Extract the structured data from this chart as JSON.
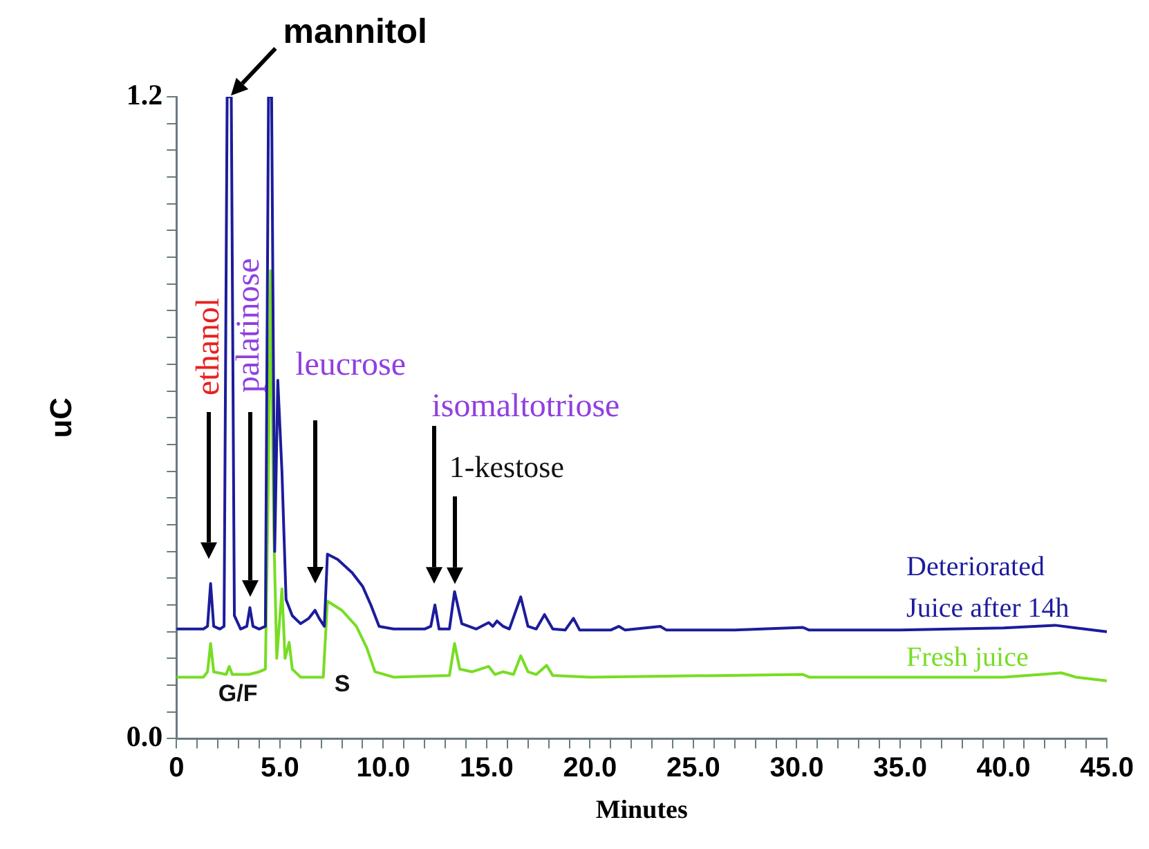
{
  "chart_data": {
    "type": "line",
    "xlabel": "Minutes",
    "ylabel": "uC",
    "xlim": [
      0,
      45
    ],
    "ylim": [
      0,
      1.2
    ],
    "xticks": [
      0,
      {
        "value": 1,
        "label": null
      },
      {
        "value": 2,
        "label": null
      },
      {
        "value": 3,
        "label": null
      },
      {
        "value": 4,
        "label": null
      },
      {
        "value": 5,
        "label": "5.0"
      },
      {
        "value": 6,
        "label": null
      },
      {
        "value": 7,
        "label": null
      },
      {
        "value": 8,
        "label": null
      },
      {
        "value": 9,
        "label": null
      },
      {
        "value": 10,
        "label": "10.0"
      },
      {
        "value": 11,
        "label": null
      },
      {
        "value": 12,
        "label": null
      },
      {
        "value": 13,
        "label": null
      },
      {
        "value": 14,
        "label": null
      },
      {
        "value": 15,
        "label": "15.0"
      },
      {
        "value": 16,
        "label": null
      },
      {
        "value": 17,
        "label": null
      },
      {
        "value": 18,
        "label": null
      },
      {
        "value": 19,
        "label": null
      },
      {
        "value": 20,
        "label": "20.0"
      },
      {
        "value": 21,
        "label": null
      },
      {
        "value": 22,
        "label": null
      },
      {
        "value": 23,
        "label": null
      },
      {
        "value": 24,
        "label": null
      },
      {
        "value": 25,
        "label": "25.0"
      },
      {
        "value": 26,
        "label": null
      },
      {
        "value": 27,
        "label": null
      },
      {
        "value": 28,
        "label": null
      },
      {
        "value": 29,
        "label": null
      },
      {
        "value": 30,
        "label": "30.0"
      },
      {
        "value": 31,
        "label": null
      },
      {
        "value": 32,
        "label": null
      },
      {
        "value": 33,
        "label": null
      },
      {
        "value": 34,
        "label": null
      },
      {
        "value": 35,
        "label": "35.0"
      },
      {
        "value": 36,
        "label": null
      },
      {
        "value": 37,
        "label": null
      },
      {
        "value": 38,
        "label": null
      },
      {
        "value": 39,
        "label": null
      },
      {
        "value": 40,
        "label": "40.0"
      },
      {
        "value": 41,
        "label": null
      },
      {
        "value": 42,
        "label": null
      },
      {
        "value": 43,
        "label": null
      },
      {
        "value": 44,
        "label": null
      },
      {
        "value": 45,
        "label": "45.0"
      }
    ],
    "yticks": [
      {
        "value": 0,
        "label": "0.0"
      },
      {
        "value": 0.05,
        "label": null
      },
      {
        "value": 0.1,
        "label": null
      },
      {
        "value": 0.15,
        "label": null
      },
      {
        "value": 0.2,
        "label": null
      },
      {
        "value": 0.25,
        "label": null
      },
      {
        "value": 0.3,
        "label": null
      },
      {
        "value": 0.35,
        "label": null
      },
      {
        "value": 0.4,
        "label": null
      },
      {
        "value": 0.45,
        "label": null
      },
      {
        "value": 0.5,
        "label": null
      },
      {
        "value": 0.55,
        "label": null
      },
      {
        "value": 0.6,
        "label": null
      },
      {
        "value": 0.65,
        "label": null
      },
      {
        "value": 0.7,
        "label": null
      },
      {
        "value": 0.75,
        "label": null
      },
      {
        "value": 0.8,
        "label": null
      },
      {
        "value": 0.85,
        "label": null
      },
      {
        "value": 0.9,
        "label": null
      },
      {
        "value": 0.95,
        "label": null
      },
      {
        "value": 1.0,
        "label": null
      },
      {
        "value": 1.05,
        "label": null
      },
      {
        "value": 1.1,
        "label": null
      },
      {
        "value": 1.15,
        "label": null
      },
      1.2
    ],
    "grid": false,
    "legend": false,
    "marker": "none",
    "line_style": "solid",
    "series": [
      {
        "name": "Deteriorated Juice after 14h",
        "color": "#1c1c9c",
        "x": [
          0,
          1.3,
          1.5,
          1.65,
          1.8,
          2.1,
          2.3,
          2.45,
          2.65,
          2.8,
          3.1,
          3.4,
          3.55,
          3.7,
          4.0,
          4.3,
          4.45,
          4.6,
          4.75,
          4.9,
          5.1,
          5.3,
          5.45,
          5.6,
          6.0,
          6.4,
          6.7,
          6.9,
          7.15,
          7.3,
          7.8,
          8.5,
          9.0,
          9.4,
          9.8,
          10.5,
          12.0,
          12.3,
          12.5,
          12.7,
          13.2,
          13.45,
          13.8,
          14.5,
          15.1,
          15.3,
          15.5,
          15.8,
          16.1,
          16.65,
          17.0,
          17.4,
          17.8,
          18.2,
          18.8,
          19.2,
          19.5,
          21.0,
          21.4,
          21.7,
          23.4,
          23.7,
          27.0,
          30.3,
          30.6,
          35.0,
          40.0,
          42.5,
          43.5,
          45.0
        ],
        "values": [
          0.205,
          0.205,
          0.21,
          0.29,
          0.21,
          0.205,
          0.21,
          1.2,
          1.2,
          0.23,
          0.205,
          0.21,
          0.245,
          0.21,
          0.205,
          0.21,
          1.2,
          1.2,
          0.35,
          0.67,
          0.5,
          0.26,
          0.245,
          0.23,
          0.215,
          0.225,
          0.24,
          0.225,
          0.21,
          0.345,
          0.335,
          0.31,
          0.285,
          0.25,
          0.21,
          0.205,
          0.205,
          0.21,
          0.25,
          0.205,
          0.205,
          0.275,
          0.215,
          0.205,
          0.217,
          0.21,
          0.22,
          0.21,
          0.205,
          0.265,
          0.21,
          0.205,
          0.232,
          0.205,
          0.203,
          0.225,
          0.203,
          0.203,
          0.21,
          0.203,
          0.21,
          0.203,
          0.203,
          0.208,
          0.203,
          0.203,
          0.207,
          0.212,
          0.207,
          0.2
        ]
      },
      {
        "name": "Fresh juice",
        "color": "#77dd22",
        "x": [
          0,
          1.3,
          1.5,
          1.65,
          1.8,
          2.4,
          2.55,
          2.7,
          3.5,
          4.0,
          4.3,
          4.45,
          4.55,
          4.7,
          4.85,
          5.1,
          5.25,
          5.45,
          5.6,
          6.0,
          7.1,
          7.3,
          8.0,
          8.7,
          9.2,
          9.6,
          10.5,
          13.2,
          13.45,
          13.7,
          14.3,
          15.1,
          15.4,
          15.8,
          16.3,
          16.65,
          17.0,
          17.4,
          17.9,
          18.2,
          20.0,
          30.3,
          30.6,
          40.0,
          42.8,
          43.5,
          45.0
        ],
        "values": [
          0.115,
          0.115,
          0.125,
          0.178,
          0.125,
          0.12,
          0.135,
          0.12,
          0.12,
          0.125,
          0.13,
          0.5,
          0.875,
          0.4,
          0.15,
          0.28,
          0.15,
          0.18,
          0.13,
          0.115,
          0.115,
          0.257,
          0.24,
          0.21,
          0.17,
          0.125,
          0.115,
          0.118,
          0.178,
          0.13,
          0.125,
          0.135,
          0.12,
          0.125,
          0.12,
          0.155,
          0.125,
          0.12,
          0.137,
          0.118,
          0.115,
          0.12,
          0.115,
          0.115,
          0.123,
          0.115,
          0.108
        ]
      }
    ],
    "annotations": [
      "mannitol",
      "ethanol",
      "palatinose",
      "leucrose",
      "isomaltotriose",
      "1-kestose",
      "G/F",
      "S"
    ]
  }
}
